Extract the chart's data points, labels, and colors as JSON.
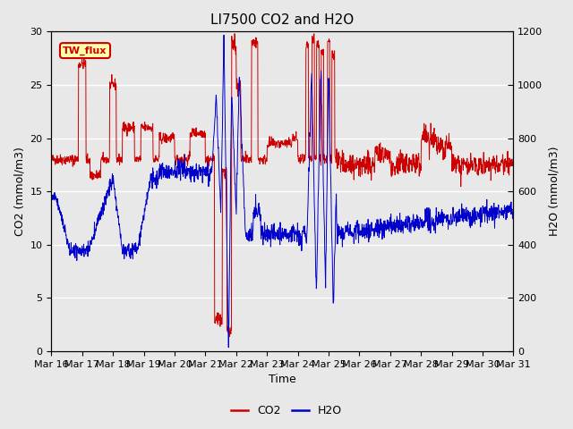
{
  "title": "LI7500 CO2 and H2O",
  "xlabel": "Time",
  "ylabel_left": "CO2 (mmol/m3)",
  "ylabel_right": "H2O (mmol/m3)",
  "ylim_left": [
    0,
    30
  ],
  "ylim_right": [
    0,
    1200
  ],
  "legend_label_co2": "CO2",
  "legend_label_h2o": "H2O",
  "text_label": "TW_flux",
  "co2_color": "#cc0000",
  "h2o_color": "#0000cc",
  "background_color": "#e8e8e8",
  "plot_background": "#e8e8e8",
  "xtick_labels": [
    "Mar 16",
    "Mar 17",
    "Mar 18",
    "Mar 19",
    "Mar 20",
    "Mar 21",
    "Mar 22",
    "Mar 23",
    "Mar 24",
    "Mar 25",
    "Mar 26",
    "Mar 27",
    "Mar 28",
    "Mar 29",
    "Mar 30",
    "Mar 31"
  ],
  "n_points": 1600,
  "seed": 42
}
